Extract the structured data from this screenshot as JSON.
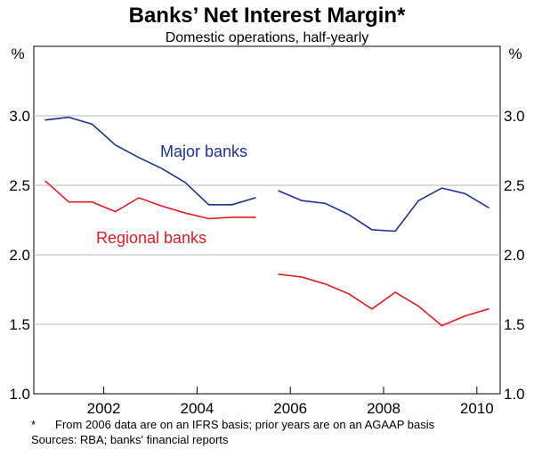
{
  "chart_data": {
    "type": "line",
    "title": "Banks’ Net Interest Margin*",
    "subtitle": "Domestic operations, half-yearly",
    "ylabel_left": "%",
    "ylabel_right": "%",
    "ylim": [
      1.0,
      3.5
    ],
    "yticks": [
      "1.0",
      "1.5",
      "2.0",
      "2.5",
      "3.0"
    ],
    "xlim": [
      2000.5,
      2010.5
    ],
    "xticks": [
      "2002",
      "2004",
      "2006",
      "2008",
      "2010"
    ],
    "xtick_values": [
      2002,
      2004,
      2006,
      2008,
      2010
    ],
    "grid": true,
    "series": [
      {
        "name": "Major banks",
        "color": "#1f2f9a",
        "segments": [
          {
            "x": [
              2000.75,
              2001.25,
              2001.75,
              2002.25,
              2002.75,
              2003.25,
              2003.75,
              2004.25,
              2004.75,
              2005.25
            ],
            "y": [
              2.97,
              2.99,
              2.94,
              2.79,
              2.7,
              2.62,
              2.52,
              2.36,
              2.36,
              2.41
            ]
          },
          {
            "x": [
              2005.75,
              2006.25,
              2006.75,
              2007.25,
              2007.75,
              2008.25,
              2008.75,
              2009.25,
              2009.75,
              2010.25
            ],
            "y": [
              2.46,
              2.39,
              2.37,
              2.29,
              2.18,
              2.17,
              2.39,
              2.48,
              2.44,
              2.34
            ]
          }
        ]
      },
      {
        "name": "Regional banks",
        "color": "#e31b23",
        "segments": [
          {
            "x": [
              2000.75,
              2001.25,
              2001.75,
              2002.25,
              2002.75,
              2003.25,
              2003.75,
              2004.25,
              2004.75,
              2005.25
            ],
            "y": [
              2.53,
              2.38,
              2.38,
              2.31,
              2.41,
              2.35,
              2.3,
              2.26,
              2.27,
              2.27
            ]
          },
          {
            "x": [
              2005.75,
              2006.25,
              2006.75,
              2007.25,
              2007.75,
              2008.25,
              2008.75,
              2009.25,
              2009.75,
              2010.25
            ],
            "y": [
              1.86,
              1.84,
              1.79,
              1.72,
              1.61,
              1.73,
              1.63,
              1.49,
              1.56,
              1.61
            ]
          }
        ]
      }
    ]
  },
  "footnotes": {
    "star": "*",
    "ifrs": "From 2006 data are on an IFRS basis; prior years are on an AGAAP basis",
    "sources": "Sources: RBA; banks' financial reports"
  }
}
